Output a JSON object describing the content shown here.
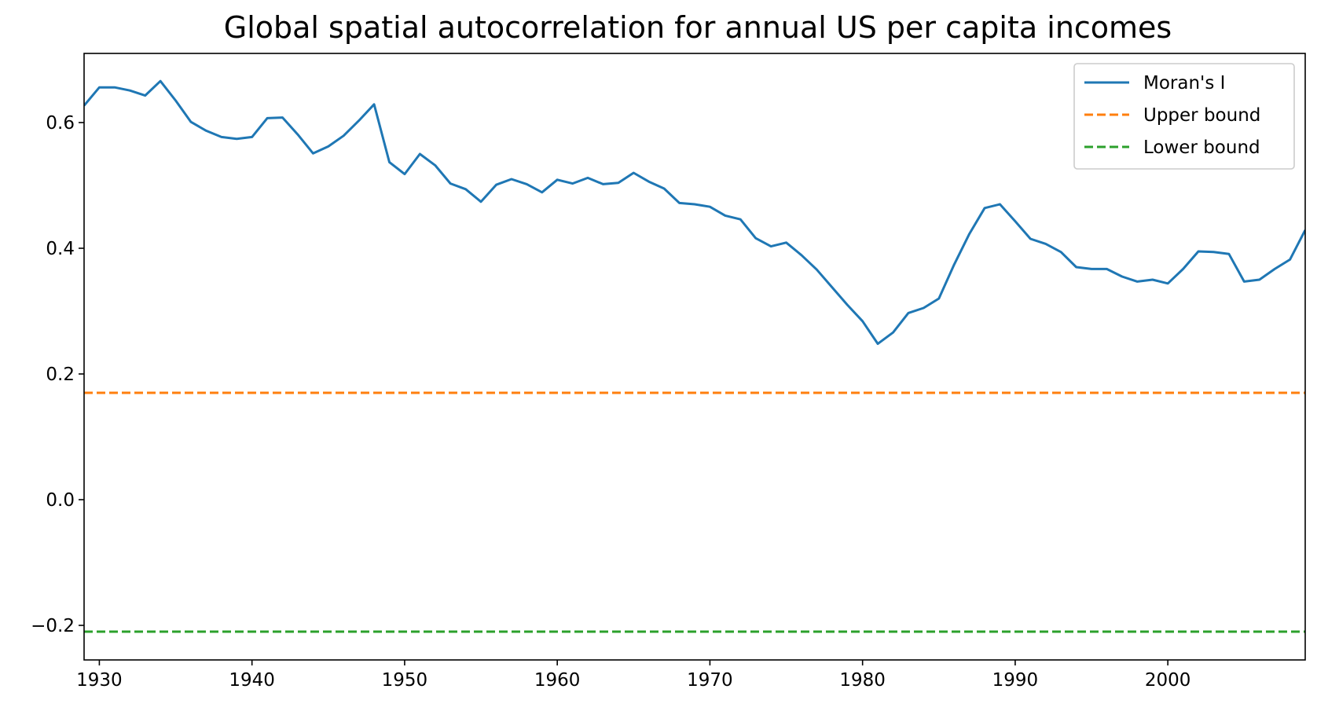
{
  "chart_data": {
    "type": "line",
    "title": "Global spatial autocorrelation for annual US per capita incomes",
    "xlabel": "",
    "ylabel": "",
    "xlim": [
      1929,
      2009
    ],
    "ylim": [
      -0.255,
      0.71
    ],
    "x_ticks": [
      1930,
      1940,
      1950,
      1960,
      1970,
      1980,
      1990,
      2000
    ],
    "y_ticks": [
      -0.2,
      0.0,
      0.2,
      0.4,
      0.6
    ],
    "y_tick_labels": [
      "−0.2",
      "0.0",
      "0.2",
      "0.4",
      "0.6"
    ],
    "grid": false,
    "legend_position": "top-right",
    "series": [
      {
        "name": "Moran's I",
        "color": "#1f77b4",
        "style": "solid",
        "x": [
          1929,
          1930,
          1931,
          1932,
          1933,
          1934,
          1935,
          1936,
          1937,
          1938,
          1939,
          1940,
          1941,
          1942,
          1943,
          1944,
          1945,
          1946,
          1947,
          1948,
          1949,
          1950,
          1951,
          1952,
          1953,
          1954,
          1955,
          1956,
          1957,
          1958,
          1959,
          1960,
          1961,
          1962,
          1963,
          1964,
          1965,
          1966,
          1967,
          1968,
          1969,
          1970,
          1971,
          1972,
          1973,
          1974,
          1975,
          1976,
          1977,
          1978,
          1979,
          1980,
          1981,
          1982,
          1983,
          1984,
          1985,
          1986,
          1987,
          1988,
          1989,
          1990,
          1991,
          1992,
          1993,
          1994,
          1995,
          1996,
          1997,
          1998,
          1999,
          2000,
          2001,
          2002,
          2003,
          2004,
          2005,
          2006,
          2007,
          2008,
          2009
        ],
        "y": [
          0.627,
          0.656,
          0.656,
          0.651,
          0.643,
          0.666,
          0.635,
          0.601,
          0.587,
          0.577,
          0.574,
          0.577,
          0.607,
          0.608,
          0.581,
          0.551,
          0.562,
          0.579,
          0.603,
          0.629,
          0.537,
          0.518,
          0.55,
          0.532,
          0.503,
          0.494,
          0.474,
          0.501,
          0.51,
          0.502,
          0.489,
          0.509,
          0.503,
          0.512,
          0.502,
          0.504,
          0.52,
          0.506,
          0.495,
          0.472,
          0.47,
          0.466,
          0.452,
          0.446,
          0.416,
          0.403,
          0.409,
          0.389,
          0.366,
          0.338,
          0.31,
          0.284,
          0.248,
          0.266,
          0.297,
          0.305,
          0.32,
          0.374,
          0.423,
          0.464,
          0.47,
          0.443,
          0.415,
          0.407,
          0.394,
          0.37,
          0.367,
          0.367,
          0.355,
          0.347,
          0.35,
          0.344,
          0.367,
          0.395,
          0.394,
          0.391,
          0.347,
          0.35,
          0.367,
          0.382,
          0.429
        ]
      },
      {
        "name": "Upper bound",
        "color": "#ff7f0e",
        "style": "dashed",
        "x": [
          1929,
          2009
        ],
        "y": [
          0.17,
          0.17
        ]
      },
      {
        "name": "Lower bound",
        "color": "#2ca02c",
        "style": "dashed",
        "x": [
          1929,
          2009
        ],
        "y": [
          -0.21,
          -0.21
        ]
      }
    ]
  }
}
